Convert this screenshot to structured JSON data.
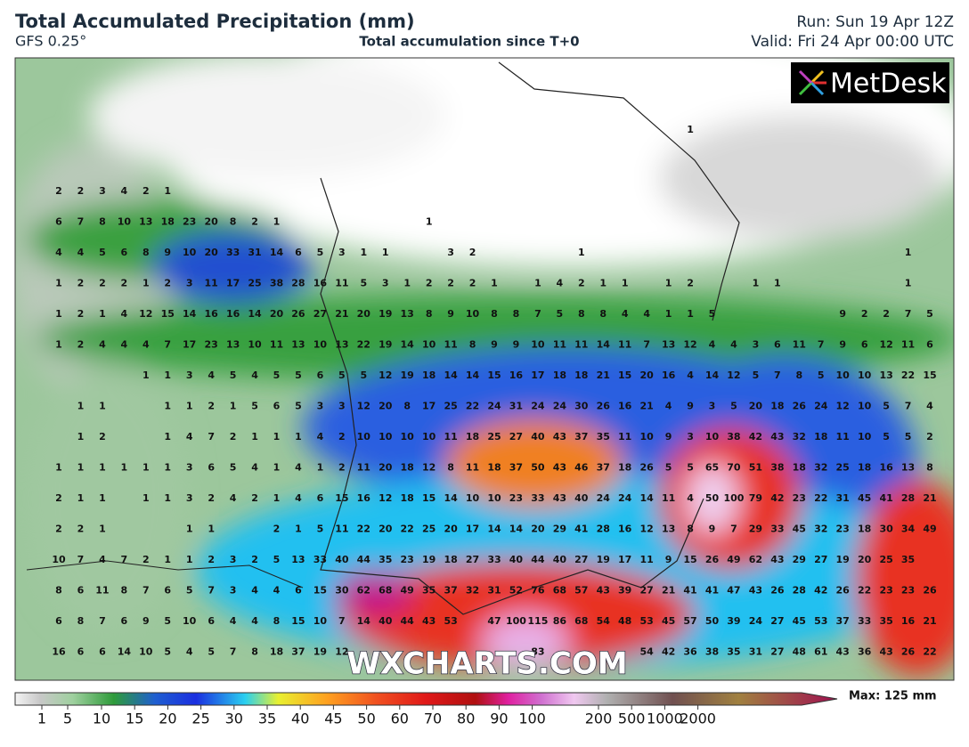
{
  "header": {
    "title": "Total Accumulated Precipitation (mm)",
    "model": "GFS 0.25°",
    "subtitle": "Total accumulation since T+0",
    "run": "Run: Sun 19 Apr 12Z",
    "valid": "Valid: Fri 24 Apr 00:00 UTC"
  },
  "logo": "MetDesk",
  "watermark": "WXCHARTS.COM",
  "map": {
    "grid": [
      [
        null,
        null,
        null,
        null,
        null,
        null,
        null,
        null,
        null,
        null,
        null,
        null,
        null,
        null,
        null,
        null,
        null,
        null,
        null,
        null,
        null,
        null,
        null,
        null,
        null,
        null,
        null,
        null,
        null,
        1,
        null,
        null,
        null,
        null,
        null,
        null,
        null,
        null,
        null,
        null,
        null
      ],
      [
        null,
        null,
        null,
        null,
        null,
        null,
        null,
        null,
        null,
        null,
        null,
        null,
        null,
        null,
        null,
        null,
        null,
        null,
        null,
        null,
        null,
        null,
        null,
        null,
        null,
        null,
        null,
        null,
        null,
        null,
        null,
        null,
        null,
        null,
        null,
        null,
        null,
        null,
        null,
        null,
        null
      ],
      [
        2,
        2,
        3,
        4,
        2,
        1,
        null,
        null,
        null,
        null,
        null,
        null,
        null,
        null,
        null,
        null,
        null,
        null,
        null,
        null,
        null,
        null,
        null,
        null,
        null,
        null,
        null,
        null,
        null,
        null,
        null,
        null,
        null,
        null,
        null,
        null,
        null,
        null,
        null,
        null,
        null
      ],
      [
        6,
        7,
        8,
        10,
        13,
        18,
        23,
        20,
        8,
        2,
        1,
        null,
        null,
        null,
        null,
        null,
        null,
        1,
        null,
        null,
        null,
        null,
        null,
        null,
        null,
        null,
        null,
        null,
        null,
        null,
        null,
        null,
        null,
        null,
        null,
        null,
        null,
        null,
        null,
        null,
        null
      ],
      [
        4,
        4,
        5,
        6,
        8,
        9,
        10,
        20,
        33,
        31,
        14,
        6,
        5,
        3,
        1,
        1,
        null,
        null,
        3,
        2,
        null,
        null,
        null,
        null,
        1,
        null,
        null,
        null,
        null,
        null,
        null,
        null,
        null,
        null,
        null,
        null,
        null,
        null,
        null,
        1,
        null
      ],
      [
        1,
        2,
        2,
        2,
        1,
        2,
        3,
        11,
        17,
        25,
        38,
        28,
        16,
        11,
        5,
        3,
        1,
        2,
        2,
        2,
        1,
        null,
        1,
        4,
        2,
        1,
        1,
        null,
        1,
        2,
        null,
        null,
        1,
        1,
        null,
        null,
        null,
        null,
        null,
        1,
        null
      ],
      [
        1,
        2,
        1,
        4,
        12,
        15,
        14,
        16,
        16,
        14,
        20,
        26,
        27,
        21,
        20,
        19,
        13,
        8,
        9,
        10,
        8,
        8,
        7,
        5,
        8,
        8,
        4,
        4,
        1,
        1,
        5,
        null,
        null,
        null,
        null,
        null,
        9,
        2,
        2,
        7,
        5
      ],
      [
        1,
        2,
        4,
        4,
        4,
        7,
        17,
        23,
        13,
        10,
        11,
        13,
        10,
        13,
        22,
        19,
        14,
        10,
        11,
        8,
        9,
        9,
        10,
        11,
        11,
        14,
        11,
        7,
        13,
        12,
        4,
        4,
        3,
        6,
        11,
        7,
        9,
        6,
        12,
        11,
        6
      ],
      [
        null,
        null,
        null,
        null,
        1,
        1,
        3,
        4,
        5,
        4,
        5,
        5,
        6,
        5,
        5,
        12,
        19,
        18,
        14,
        14,
        15,
        16,
        17,
        18,
        18,
        21,
        15,
        20,
        16,
        4,
        14,
        12,
        5,
        7,
        8,
        5,
        10,
        10,
        13,
        22,
        15
      ],
      [
        null,
        1,
        1,
        null,
        null,
        1,
        1,
        2,
        1,
        5,
        6,
        5,
        3,
        3,
        12,
        20,
        8,
        17,
        25,
        22,
        24,
        31,
        24,
        24,
        30,
        26,
        16,
        21,
        4,
        9,
        3,
        5,
        20,
        18,
        26,
        24,
        12,
        10,
        5,
        7,
        4
      ],
      [
        null,
        1,
        2,
        null,
        null,
        1,
        4,
        7,
        2,
        1,
        1,
        1,
        4,
        2,
        10,
        10,
        10,
        10,
        11,
        18,
        25,
        27,
        40,
        43,
        37,
        35,
        11,
        10,
        9,
        3,
        10,
        38,
        42,
        43,
        32,
        18,
        11,
        10,
        5,
        5,
        2
      ],
      [
        1,
        1,
        1,
        1,
        1,
        1,
        3,
        6,
        5,
        4,
        1,
        4,
        1,
        2,
        11,
        20,
        18,
        12,
        8,
        11,
        18,
        37,
        50,
        43,
        46,
        37,
        18,
        26,
        5,
        5,
        65,
        70,
        51,
        38,
        18,
        32,
        25,
        18,
        16,
        13,
        8
      ],
      [
        2,
        1,
        1,
        null,
        1,
        1,
        3,
        2,
        4,
        2,
        1,
        4,
        6,
        15,
        16,
        12,
        18,
        15,
        14,
        10,
        10,
        23,
        33,
        43,
        40,
        24,
        24,
        14,
        11,
        4,
        50,
        100,
        79,
        42,
        23,
        22,
        31,
        45,
        41,
        28,
        21
      ],
      [
        2,
        2,
        1,
        null,
        null,
        null,
        1,
        1,
        null,
        null,
        2,
        1,
        5,
        11,
        22,
        20,
        22,
        25,
        20,
        17,
        14,
        14,
        20,
        29,
        41,
        28,
        16,
        12,
        13,
        8,
        9,
        7,
        29,
        33,
        45,
        32,
        23,
        18,
        30,
        34,
        49
      ],
      [
        10,
        7,
        4,
        7,
        2,
        1,
        1,
        2,
        3,
        2,
        5,
        13,
        33,
        40,
        44,
        35,
        23,
        19,
        18,
        27,
        33,
        40,
        44,
        40,
        27,
        19,
        17,
        11,
        9,
        15,
        26,
        49,
        62,
        43,
        29,
        27,
        19,
        20,
        25,
        35,
        null
      ],
      [
        8,
        6,
        11,
        8,
        7,
        6,
        5,
        7,
        3,
        4,
        4,
        6,
        15,
        30,
        62,
        68,
        49,
        35,
        37,
        32,
        31,
        52,
        76,
        68,
        57,
        43,
        39,
        27,
        21,
        41,
        41,
        47,
        43,
        26,
        28,
        42,
        26,
        22,
        23,
        23,
        26
      ],
      [
        6,
        8,
        7,
        6,
        9,
        5,
        10,
        6,
        4,
        4,
        8,
        15,
        10,
        7,
        14,
        40,
        44,
        43,
        53,
        null,
        47,
        100,
        115,
        86,
        68,
        54,
        48,
        53,
        45,
        57,
        50,
        39,
        24,
        27,
        45,
        53,
        37,
        33,
        35,
        16,
        21
      ],
      [
        16,
        6,
        6,
        14,
        10,
        5,
        4,
        5,
        7,
        8,
        18,
        37,
        19,
        12,
        null,
        null,
        null,
        null,
        null,
        null,
        null,
        null,
        83,
        null,
        null,
        null,
        null,
        54,
        42,
        36,
        38,
        35,
        31,
        27,
        48,
        61,
        43,
        36,
        43,
        26,
        22
      ]
    ]
  },
  "legend": {
    "ticks": [
      1,
      5,
      10,
      15,
      20,
      25,
      30,
      35,
      40,
      45,
      50,
      60,
      70,
      80,
      90,
      100,
      200,
      500,
      1000,
      2000
    ],
    "max": "Max: 125 mm"
  }
}
